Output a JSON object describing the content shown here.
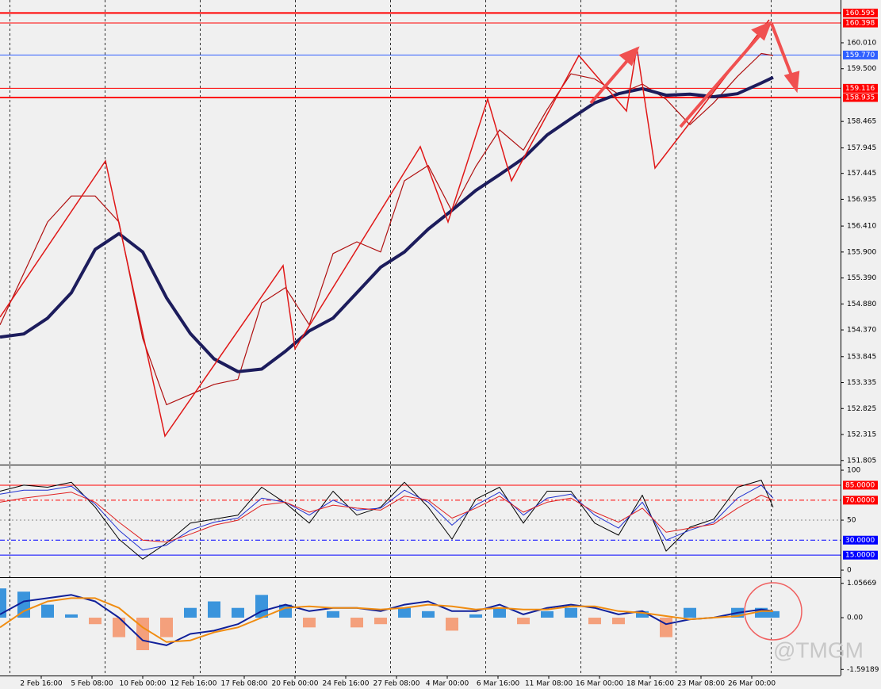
{
  "chart_data": [
    {
      "type": "line",
      "x": [
        -0.8125,
        -0.34375,
        0.125,
        0.59375,
        1.0625,
        1.53125,
        2,
        2.46875,
        2.9375,
        3.40625,
        3.875,
        4.34375,
        4.8125,
        5.28125,
        5.75,
        6.21875,
        6.6875,
        7.15625,
        7.625,
        8.09375,
        8.5625,
        9.03125,
        9.5,
        9.96875,
        10.4375,
        10.90625,
        11.375,
        11.84375,
        12.3125,
        12.78125,
        13.25,
        13.71875,
        14.1875,
        14.421875
      ],
      "xlim": [
        -0.8125,
        15.75
      ],
      "ylim": [
        151.739,
        160.726
      ],
      "yticks": [
        {
          "value": 160.01,
          "label": "160.010"
        },
        {
          "value": 159.5,
          "label": "159.500"
        },
        158.465,
        157.945,
        157.445,
        156.935,
        {
          "value": 156.41,
          "label": "156.410"
        },
        {
          "value": 155.9,
          "label": "155.900"
        },
        {
          "value": 155.39,
          "label": "155.390"
        },
        {
          "value": 154.88,
          "label": "154.880"
        },
        {
          "value": 154.37,
          "label": "154.370"
        },
        153.845,
        153.335,
        152.825,
        152.315,
        151.805
      ],
      "levels": [
        {
          "value": 160.595,
          "color": "#ff0000",
          "width": 2
        },
        {
          "value": 160.398,
          "color": "#ff0000",
          "width": 1
        },
        {
          "value": 159.77,
          "label": "159.770",
          "color": "#3060ff",
          "width": 1,
          "label_color": "#ffffff"
        },
        {
          "value": 159.116,
          "color": "#ff0000",
          "width": 1
        },
        {
          "value": 158.935,
          "color": "#ff0000",
          "width": 2
        }
      ],
      "series": [
        {
          "color": "#b01010",
          "width": 1.2,
          "values": [
            154.47,
            155.48,
            156.49,
            157.0,
            157.0,
            156.49,
            154.2,
            152.9,
            153.1,
            153.3,
            153.4,
            154.9,
            155.2,
            154.47,
            155.87,
            156.1,
            155.9,
            157.3,
            157.6,
            156.7,
            157.58,
            158.3,
            157.9,
            158.7,
            159.4,
            159.3,
            159.0,
            159.2,
            158.9,
            158.4,
            158.83,
            159.35,
            159.8,
            159.76
          ]
        },
        {
          "color": "#1c1c5c",
          "width": 4,
          "values": [
            154.23,
            154.29,
            154.6,
            155.1,
            155.95,
            156.26,
            155.9,
            155.0,
            154.3,
            153.8,
            153.55,
            153.6,
            153.95,
            154.35,
            154.6,
            155.1,
            155.6,
            155.9,
            156.35,
            156.72,
            157.11,
            157.42,
            157.74,
            158.2,
            158.52,
            158.83,
            159.01,
            159.11,
            158.98,
            159.0,
            158.95,
            159.01,
            159.22,
            159.33
          ]
        }
      ]
    },
    {
      "type": "line",
      "x": [
        -0.8125,
        -0.34375,
        0.125,
        0.59375,
        1.0625,
        1.53125,
        2,
        2.46875,
        2.9375,
        3.40625,
        3.875,
        4.34375,
        4.8125,
        5.28125,
        5.75,
        6.21875,
        6.6875,
        7.15625,
        7.625,
        8.09375,
        8.5625,
        9.03125,
        9.5,
        9.96875,
        10.4375,
        10.90625,
        11.375,
        11.84375,
        12.3125,
        12.78125,
        13.25,
        13.71875,
        14.1875,
        14.421875
      ],
      "xlim": [
        -0.8125,
        15.75
      ],
      "ylim": [
        -6.3,
        104
      ],
      "yticks": [
        100,
        50,
        0
      ],
      "levels": [
        {
          "value": 85,
          "label": "85.0000",
          "color": "#ff0000",
          "dash": "none"
        },
        {
          "value": 70,
          "label": "70.0000",
          "color": "#ff0000",
          "dash": "6 3 2 3"
        },
        {
          "value": 30,
          "label": "30.0000",
          "color": "#0000ff",
          "dash": "6 3 2 3"
        },
        {
          "value": 15,
          "label": "15.0000",
          "color": "#0000ff",
          "dash": "none"
        }
      ],
      "series": [
        {
          "color": "#000000",
          "width": 1,
          "values": [
            79,
            85,
            83,
            88,
            63,
            31,
            11,
            27,
            47,
            51,
            55,
            83,
            67,
            47,
            79,
            55,
            63,
            88,
            63,
            31,
            71,
            83,
            47,
            79,
            79,
            47,
            35,
            75,
            19,
            43,
            51,
            83,
            90,
            63
          ]
        },
        {
          "color": "#2030d0",
          "width": 1,
          "values": [
            76,
            80,
            80,
            84,
            66,
            40,
            20,
            25,
            40,
            48,
            52,
            72,
            68,
            55,
            70,
            60,
            62,
            80,
            68,
            45,
            65,
            78,
            55,
            72,
            76,
            55,
            42,
            68,
            30,
            40,
            48,
            72,
            85,
            72
          ]
        },
        {
          "color": "#e02020",
          "width": 1,
          "values": [
            68,
            72,
            75,
            78,
            68,
            48,
            30,
            28,
            36,
            45,
            50,
            65,
            68,
            58,
            65,
            62,
            60,
            74,
            70,
            52,
            62,
            74,
            58,
            68,
            72,
            58,
            48,
            62,
            38,
            42,
            46,
            62,
            75,
            70
          ]
        }
      ]
    },
    {
      "type": "line",
      "x": [
        -0.8125,
        -0.34375,
        0.125,
        0.59375,
        1.0625,
        1.53125,
        2,
        2.46875,
        2.9375,
        3.40625,
        3.875,
        4.34375,
        4.8125,
        5.28125,
        5.75,
        6.21875,
        6.6875,
        7.15625,
        7.625,
        8.09375,
        8.5625,
        9.03125,
        9.5,
        9.96875,
        10.4375,
        10.90625,
        11.375,
        11.84375,
        12.3125,
        12.78125,
        13.25,
        13.71875,
        14.1875,
        14.421875
      ],
      "xlim": [
        -0.8125,
        15.75
      ],
      "ylim": [
        -1.78,
        1.22
      ],
      "yticks": [
        1.05669,
        {
          "value": 0,
          "label": "0.00"
        },
        -1.59189
      ],
      "xticks": [
        {
          "value": 0,
          "label": "2 Feb 16:00"
        },
        {
          "value": 1,
          "label": "5 Feb 08:00"
        },
        {
          "value": 2,
          "label": "10 Feb 00:00"
        },
        {
          "value": 3,
          "label": "12 Feb 16:00"
        },
        {
          "value": 4,
          "label": "17 Feb 08:00"
        },
        {
          "value": 5,
          "label": "20 Feb 00:00"
        },
        {
          "value": 6,
          "label": "24 Feb 16:00"
        },
        {
          "value": 7,
          "label": "27 Feb 08:00"
        },
        {
          "value": 8,
          "label": "4 Mar 00:00"
        },
        {
          "value": 9,
          "label": "6 Mar 16:00"
        },
        {
          "value": 10,
          "label": "11 Mar 08:00"
        },
        {
          "value": 11,
          "label": "16 Mar 00:00"
        },
        {
          "value": 12,
          "label": "18 Mar 16:00"
        },
        {
          "value": 13,
          "label": "23 Mar 08:00"
        },
        {
          "value": 14,
          "label": "26 Mar 00:00"
        }
      ],
      "series": [
        {
          "kind": "bar",
          "color": "#3a94dc",
          "negative_color": "#f4a07c",
          "values": [
            0.9,
            0.8,
            0.4,
            0.1,
            -0.2,
            -0.6,
            -1.0,
            -0.6,
            0.3,
            0.5,
            0.3,
            0.7,
            0.4,
            -0.3,
            0.2,
            -0.3,
            -0.2,
            0.3,
            0.2,
            -0.4,
            0.1,
            0.3,
            -0.2,
            0.2,
            0.3,
            -0.2,
            -0.2,
            0.2,
            -0.6,
            0.3,
            0.0,
            0.3,
            0.3,
            0.2
          ]
        },
        {
          "color": "#10209a",
          "width": 2,
          "values": [
            0.1,
            0.5,
            0.6,
            0.7,
            0.5,
            0.0,
            -0.7,
            -0.85,
            -0.5,
            -0.4,
            -0.2,
            0.2,
            0.4,
            0.2,
            0.3,
            0.3,
            0.2,
            0.4,
            0.5,
            0.2,
            0.2,
            0.4,
            0.1,
            0.3,
            0.4,
            0.3,
            0.1,
            0.2,
            -0.2,
            -0.05,
            0.0,
            0.15,
            0.25,
            0.2
          ]
        },
        {
          "color": "#f08c10",
          "width": 2,
          "values": [
            -0.3,
            0.2,
            0.5,
            0.6,
            0.6,
            0.3,
            -0.3,
            -0.75,
            -0.7,
            -0.45,
            -0.3,
            0.0,
            0.3,
            0.35,
            0.3,
            0.3,
            0.25,
            0.3,
            0.4,
            0.35,
            0.25,
            0.3,
            0.25,
            0.25,
            0.35,
            0.35,
            0.2,
            0.15,
            0.05,
            -0.05,
            0.0,
            0.05,
            0.2,
            0.2
          ]
        }
      ]
    }
  ],
  "watermark": "@TMGM"
}
